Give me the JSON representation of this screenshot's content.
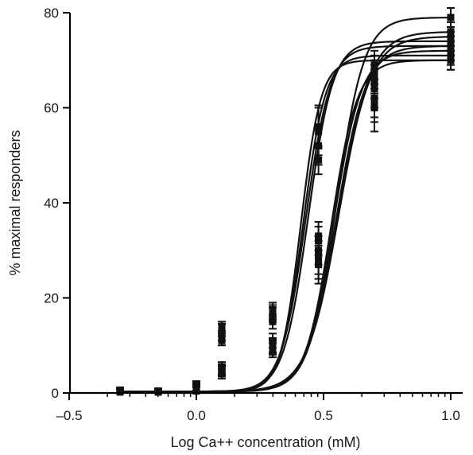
{
  "chart_data": {
    "type": "line",
    "title": "",
    "xlabel": "Log Ca++ concentration (mM)",
    "ylabel": "% maximal responders",
    "xlim": [
      -0.5,
      1.05
    ],
    "ylim": [
      0,
      80
    ],
    "x_ticks": [
      -0.5,
      0.0,
      0.5,
      1.0
    ],
    "x_tick_labels": [
      "–0.5",
      "0.0",
      "0.5",
      "1.0"
    ],
    "y_ticks": [
      0,
      20,
      40,
      60,
      80
    ],
    "y_tick_labels": [
      "0",
      "20",
      "40",
      "60",
      "80"
    ],
    "x_log_minor_ticks": true,
    "grid": false,
    "legend": "none",
    "x": [
      -0.3,
      -0.15,
      0.0,
      0.1,
      0.3,
      0.48,
      0.7,
      1.0
    ],
    "series": [
      {
        "fit": {
          "top": 71,
          "ec50": 0.42,
          "hill": 10
        },
        "values": [
          0.4,
          0.3,
          1.0,
          14,
          17.5,
          56,
          68,
          71
        ],
        "errors": [
          0.5,
          0.5,
          1.0,
          1.0,
          1.5,
          4.5,
          3,
          2
        ]
      },
      {
        "fit": {
          "top": 70,
          "ec50": 0.41,
          "hill": 11
        },
        "values": [
          0.6,
          0.2,
          1.2,
          13.5,
          16.5,
          55,
          69,
          70
        ],
        "errors": [
          0.5,
          0.5,
          1.0,
          1.0,
          1.5,
          5,
          3,
          2
        ]
      },
      {
        "fit": {
          "top": 73,
          "ec50": 0.43,
          "hill": 9
        },
        "values": [
          0.5,
          0.4,
          1.5,
          12,
          17,
          52,
          66,
          73
        ],
        "errors": [
          0.5,
          0.5,
          1.0,
          1.0,
          1.5,
          4,
          3,
          2
        ]
      },
      {
        "fit": {
          "top": 74,
          "ec50": 0.44,
          "hill": 9
        },
        "values": [
          0.3,
          0.3,
          0.8,
          11,
          15,
          49,
          65,
          74
        ],
        "errors": [
          0.5,
          0.5,
          1.0,
          1.0,
          1.5,
          3,
          3,
          2
        ]
      },
      {
        "fit": {
          "top": 79,
          "ec50": 0.55,
          "hill": 8
        },
        "values": [
          0.2,
          0.2,
          0.5,
          5,
          10,
          32,
          66,
          79
        ],
        "errors": [
          0.5,
          0.5,
          0.8,
          1.0,
          1.5,
          3,
          4,
          2
        ]
      },
      {
        "fit": {
          "top": 76,
          "ec50": 0.56,
          "hill": 7
        },
        "values": [
          0.4,
          0.3,
          0.6,
          4.5,
          9.5,
          30,
          62,
          76
        ],
        "errors": [
          0.5,
          0.5,
          0.8,
          1.0,
          1.5,
          3,
          4,
          2
        ]
      },
      {
        "fit": {
          "top": 73,
          "ec50": 0.55,
          "hill": 7.5
        },
        "values": [
          0.3,
          0.4,
          0.7,
          4,
          9,
          28,
          60,
          73
        ],
        "errors": [
          0.5,
          0.5,
          0.8,
          1.0,
          1.5,
          4,
          5,
          2
        ]
      },
      {
        "fit": {
          "top": 72,
          "ec50": 0.54,
          "hill": 8
        },
        "values": [
          0.5,
          0.2,
          0.4,
          5.5,
          11,
          29,
          64,
          72
        ],
        "errors": [
          0.5,
          0.5,
          0.8,
          1.0,
          1.5,
          4,
          4,
          2
        ]
      },
      {
        "fit": {
          "top": 70,
          "ec50": 0.53,
          "hill": 8.5
        },
        "values": [
          0.2,
          0.3,
          0.9,
          5,
          10,
          33,
          67,
          70
        ],
        "errors": [
          0.5,
          0.5,
          0.8,
          1.0,
          1.5,
          3,
          3,
          2
        ]
      },
      {
        "fit": {
          "top": 75,
          "ec50": 0.56,
          "hill": 7
        },
        "values": [
          0.6,
          0.4,
          0.6,
          4.8,
          9.8,
          27,
          61,
          75
        ],
        "errors": [
          0.5,
          0.5,
          0.8,
          1.0,
          1.5,
          4,
          4,
          2
        ]
      }
    ]
  }
}
